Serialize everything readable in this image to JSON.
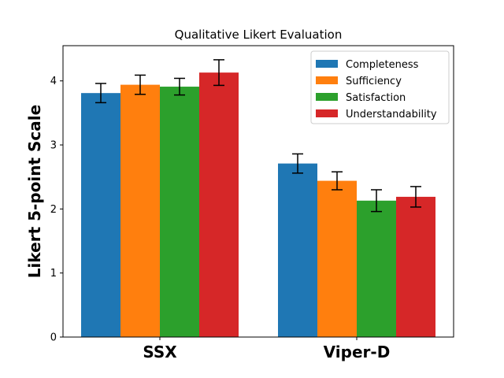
{
  "chart_data": {
    "type": "bar",
    "title": "Qualitative Likert Evaluation",
    "xlabel": "",
    "ylabel": "Likert 5-point Scale",
    "ylim": [
      0,
      4.55
    ],
    "yticks": [
      "0",
      "1",
      "2",
      "3",
      "4"
    ],
    "categories": [
      "SSX",
      "Viper-D"
    ],
    "legend_position": "top-right",
    "grid": false,
    "series": [
      {
        "name": "Completeness",
        "color": "#1f77b4",
        "values": [
          3.81,
          2.71
        ],
        "errors": [
          0.15,
          0.15
        ]
      },
      {
        "name": "Sufficiency",
        "color": "#ff7f0e",
        "values": [
          3.94,
          2.44
        ],
        "errors": [
          0.15,
          0.14
        ]
      },
      {
        "name": "Satisfaction",
        "color": "#2ca02c",
        "values": [
          3.91,
          2.13
        ],
        "errors": [
          0.13,
          0.17
        ]
      },
      {
        "name": "Understandability",
        "color": "#d62728",
        "values": [
          4.13,
          2.19
        ],
        "errors": [
          0.2,
          0.16
        ]
      }
    ]
  }
}
